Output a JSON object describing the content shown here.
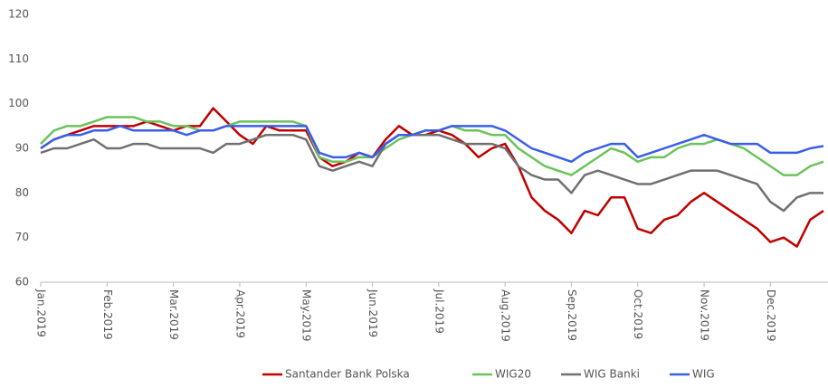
{
  "chart_data": {
    "type": "line",
    "categories": [
      "Jan.2019",
      null,
      null,
      null,
      null,
      "Feb.2019",
      null,
      null,
      null,
      null,
      "Mar.2019",
      null,
      null,
      null,
      null,
      "Apr.2019",
      null,
      null,
      null,
      null,
      "May.2019",
      null,
      null,
      null,
      null,
      "Jun.2019",
      null,
      null,
      null,
      null,
      "Jul.2019",
      null,
      null,
      null,
      null,
      "Aug.2019",
      null,
      null,
      null,
      null,
      "Sep.2019",
      null,
      null,
      null,
      null,
      "Oct.2019",
      null,
      null,
      null,
      null,
      "Nov.2019",
      null,
      null,
      null,
      null,
      "Dec.2019",
      null,
      null,
      null,
      null
    ],
    "series": [
      {
        "name": "Santander Bank Polska",
        "color": "#c00000",
        "values": [
          90,
          92,
          93,
          94,
          95,
          95,
          95,
          95,
          96,
          95,
          94,
          95,
          95,
          99,
          96,
          93,
          91,
          95,
          94,
          94,
          94,
          88,
          86,
          87,
          89,
          88,
          92,
          95,
          93,
          93,
          94,
          93,
          91,
          88,
          90,
          91,
          86,
          79,
          76,
          74,
          71,
          76,
          75,
          79,
          79,
          72,
          71,
          74,
          75,
          78,
          80,
          78,
          76,
          74,
          72,
          69,
          70,
          68,
          74,
          76
        ]
      },
      {
        "name": "WIG20",
        "color": "#6cc35a",
        "values": [
          91,
          94,
          95,
          95,
          96,
          97,
          97,
          97,
          96,
          96,
          95,
          95,
          94,
          94,
          95,
          96,
          96,
          96,
          96,
          96,
          95,
          88,
          87,
          87,
          88,
          88,
          90,
          92,
          93,
          94,
          94,
          95,
          94,
          94,
          93,
          93,
          90,
          88,
          86,
          85,
          84,
          86,
          88,
          90,
          89,
          87,
          88,
          88,
          90,
          91,
          91,
          92,
          91,
          90,
          88,
          86,
          84,
          84,
          86,
          87
        ]
      },
      {
        "name": "WIG Banki",
        "color": "#707070",
        "values": [
          89,
          90,
          90,
          91,
          92,
          90,
          90,
          91,
          91,
          90,
          90,
          90,
          90,
          89,
          91,
          91,
          92,
          93,
          93,
          93,
          92,
          86,
          85,
          86,
          87,
          86,
          91,
          93,
          93,
          93,
          93,
          92,
          91,
          91,
          91,
          90,
          86,
          84,
          83,
          83,
          80,
          84,
          85,
          84,
          83,
          82,
          82,
          83,
          84,
          85,
          85,
          85,
          84,
          83,
          82,
          78,
          76,
          79,
          80,
          80
        ]
      },
      {
        "name": "WIG",
        "color": "#3a5ee8",
        "values": [
          90,
          92,
          93,
          93,
          94,
          94,
          95,
          94,
          94,
          94,
          94,
          93,
          94,
          94,
          95,
          95,
          95,
          95,
          95,
          95,
          95,
          89,
          88,
          88,
          89,
          88,
          91,
          93,
          93,
          94,
          94,
          95,
          95,
          95,
          95,
          94,
          92,
          90,
          89,
          88,
          87,
          89,
          90,
          91,
          91,
          88,
          89,
          90,
          91,
          92,
          93,
          92,
          91,
          91,
          91,
          89,
          89,
          89,
          90,
          90.5
        ]
      }
    ],
    "ylim": [
      60,
      120
    ],
    "yticks": [
      60,
      70,
      80,
      90,
      100,
      110,
      120
    ],
    "legend": "bottom"
  }
}
